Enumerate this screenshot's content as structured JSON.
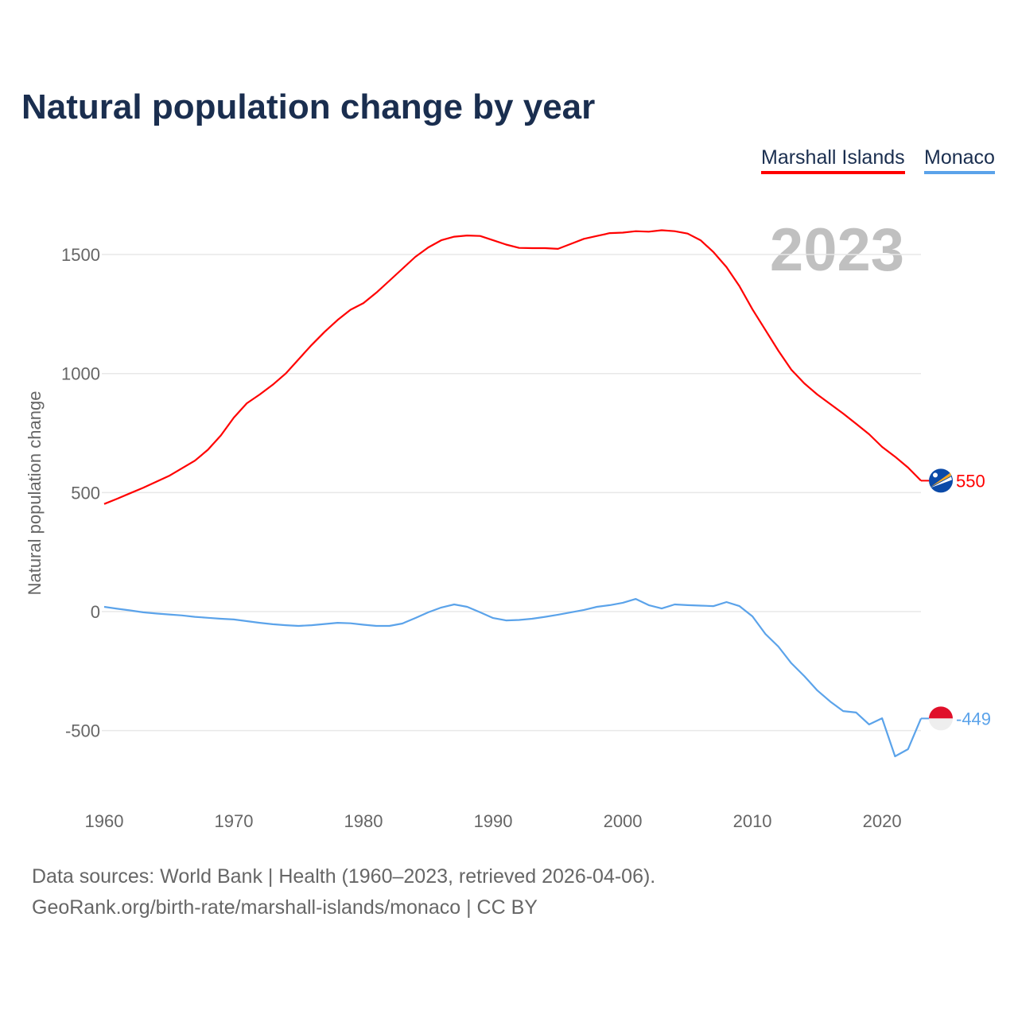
{
  "chart_data": {
    "type": "line",
    "title": "Natural population change by year",
    "ylabel": "Natural population change",
    "xlabel": "",
    "ylim": [
      -700,
      1700
    ],
    "xlim": [
      1960,
      2023
    ],
    "grid": true,
    "legend_position": "top-right",
    "year_watermark": "2023",
    "yticks": [
      1500,
      1000,
      500,
      0,
      -500
    ],
    "ytick_labels": [
      "1500",
      "1000",
      "500",
      "0",
      "-500"
    ],
    "xticks": [
      1960,
      1970,
      1980,
      1990,
      2000,
      2010,
      2020
    ],
    "xtick_labels": [
      "1960",
      "1970",
      "1980",
      "1990",
      "2000",
      "2010",
      "2020"
    ],
    "x": [
      1960,
      1961,
      1962,
      1963,
      1964,
      1965,
      1966,
      1967,
      1968,
      1969,
      1970,
      1971,
      1972,
      1973,
      1974,
      1975,
      1976,
      1977,
      1978,
      1979,
      1980,
      1981,
      1982,
      1983,
      1984,
      1985,
      1986,
      1987,
      1988,
      1989,
      1990,
      1991,
      1992,
      1993,
      1994,
      1995,
      1996,
      1997,
      1998,
      1999,
      2000,
      2001,
      2002,
      2003,
      2004,
      2005,
      2006,
      2007,
      2008,
      2009,
      2010,
      2011,
      2012,
      2013,
      2014,
      2015,
      2016,
      2017,
      2018,
      2019,
      2020,
      2021,
      2022,
      2023
    ],
    "series": [
      {
        "name": "Marshall Islands",
        "color": "#ff0000",
        "end_label": "550",
        "flag": "marshall-islands",
        "values": [
          452,
          474,
          497,
          520,
          545,
          570,
          602,
          634,
          680,
          740,
          815,
          875,
          912,
          953,
          1000,
          1060,
          1120,
          1175,
          1225,
          1268,
          1296,
          1340,
          1390,
          1440,
          1490,
          1530,
          1560,
          1575,
          1580,
          1578,
          1560,
          1542,
          1528,
          1527,
          1527,
          1524,
          1545,
          1566,
          1578,
          1590,
          1592,
          1598,
          1596,
          1602,
          1598,
          1588,
          1560,
          1510,
          1447,
          1367,
          1270,
          1183,
          1096,
          1016,
          959,
          912,
          872,
          832,
          789,
          745,
          692,
          651,
          605,
          550
        ]
      },
      {
        "name": "Monaco",
        "color": "#5ba3ea",
        "end_label": "-449",
        "flag": "monaco",
        "values": [
          20,
          12,
          5,
          -3,
          -8,
          -12,
          -16,
          -22,
          -26,
          -30,
          -33,
          -40,
          -47,
          -53,
          -57,
          -60,
          -57,
          -52,
          -47,
          -49,
          -55,
          -60,
          -60,
          -50,
          -27,
          -3,
          17,
          30,
          20,
          -3,
          -27,
          -37,
          -35,
          -30,
          -22,
          -13,
          -3,
          7,
          20,
          27,
          37,
          53,
          27,
          13,
          30,
          27,
          25,
          23,
          40,
          23,
          -20,
          -94,
          -147,
          -217,
          -271,
          -331,
          -378,
          -418,
          -424,
          -474,
          -448,
          -608,
          -578,
          -449
        ]
      }
    ]
  },
  "legend": [
    "Marshall Islands",
    "Monaco"
  ],
  "footer": {
    "line1": "Data sources: World Bank | Health (1960–2023, retrieved 2026-04-06).",
    "line2": "GeoRank.org/birth-rate/marshall-islands/monaco | CC BY"
  }
}
